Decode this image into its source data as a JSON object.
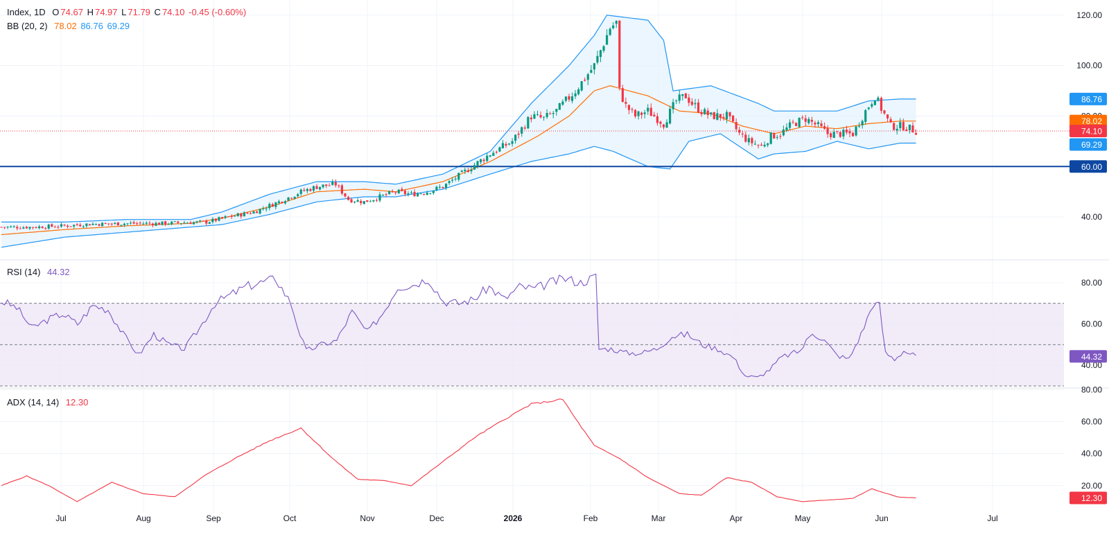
{
  "colors": {
    "up": "#089981",
    "down": "#f23645",
    "bb_basis": "#ff6d00",
    "bb_band": "#2196f3",
    "bb_fill": "#e3f2fd",
    "rsi": "#7e57c2",
    "rsi_fill": "#ede7f6",
    "adx": "#f23645",
    "hline": "#0d47a1",
    "grid": "#f0f3fa"
  },
  "legend": {
    "main_symbol": "Index, 1D",
    "O_label": "O",
    "O": "74.67",
    "H_label": "H",
    "H": "74.97",
    "L_label": "L",
    "L": "71.79",
    "C_label": "C",
    "C": "74.10",
    "change": "-0.45 (-0.60%)",
    "bb_name": "BB (20, 2)",
    "bb_basis": "78.02",
    "bb_upper": "86.76",
    "bb_lower": "69.29",
    "rsi_name": "RSI (14)",
    "rsi_value": "44.32",
    "adx_name": "ADX (14, 14)",
    "adx_value": "12.30"
  },
  "price_labels": {
    "upper": "86.76",
    "basis": "78.02",
    "close": "74.10",
    "lower": "69.29",
    "hline": "60.00"
  },
  "chart_data": [
    {
      "type": "candlestick",
      "title": "Index, 1D",
      "x_ticks": [
        "Jul",
        "Aug",
        "Sep",
        "Oct",
        "Nov",
        "Dec",
        "2026",
        "Feb",
        "Mar",
        "Apr",
        "May",
        "Jun",
        "Jul"
      ],
      "y_ticks": [
        "40.00",
        "60.00",
        "80.00",
        "100.00",
        "120.00"
      ],
      "ylim": [
        23,
        126
      ],
      "horizontal_line": 60,
      "close_line": 74.1,
      "x_index_range": [
        0,
        336
      ],
      "close_waypoints": [
        [
          0,
          36
        ],
        [
          10,
          36
        ],
        [
          20,
          36.5
        ],
        [
          28,
          37.2
        ],
        [
          35,
          37.3
        ],
        [
          43,
          37.5
        ],
        [
          50,
          37.4
        ],
        [
          58,
          37.8
        ],
        [
          65,
          38
        ],
        [
          72,
          40
        ],
        [
          80,
          42
        ],
        [
          88,
          46
        ],
        [
          95,
          50
        ],
        [
          100,
          52
        ],
        [
          106,
          53
        ],
        [
          110,
          47
        ],
        [
          115,
          46
        ],
        [
          120,
          48
        ],
        [
          125,
          50
        ],
        [
          130,
          49
        ],
        [
          135,
          50
        ],
        [
          140,
          52
        ],
        [
          147,
          58
        ],
        [
          155,
          65
        ],
        [
          162,
          70
        ],
        [
          168,
          80
        ],
        [
          172,
          79
        ],
        [
          176,
          82
        ],
        [
          182,
          90
        ],
        [
          188,
          100
        ],
        [
          193,
          115
        ],
        [
          195,
          117
        ],
        [
          196,
          90
        ],
        [
          198,
          84
        ],
        [
          201,
          80
        ],
        [
          205,
          82
        ],
        [
          210,
          77
        ],
        [
          214,
          86
        ],
        [
          217,
          88
        ],
        [
          219,
          85
        ],
        [
          222,
          82
        ],
        [
          225,
          80
        ],
        [
          230,
          80
        ],
        [
          234,
          73
        ],
        [
          237,
          70
        ],
        [
          241,
          68
        ],
        [
          244,
          72
        ],
        [
          247,
          73
        ],
        [
          251,
          77
        ],
        [
          255,
          79
        ],
        [
          259,
          76
        ],
        [
          262,
          73
        ],
        [
          266,
          73
        ],
        [
          270,
          73
        ],
        [
          274,
          82
        ],
        [
          277,
          88
        ],
        [
          279,
          83
        ],
        [
          282,
          76
        ],
        [
          286,
          76
        ],
        [
          290,
          74.1
        ]
      ],
      "candle_range": [
        0,
        290
      ],
      "bb": {
        "basis_waypoints": [
          [
            0,
            33
          ],
          [
            20,
            35
          ],
          [
            40,
            36.5
          ],
          [
            60,
            37.5
          ],
          [
            70,
            39.5
          ],
          [
            85,
            44
          ],
          [
            100,
            50
          ],
          [
            115,
            51
          ],
          [
            125,
            50
          ],
          [
            140,
            54
          ],
          [
            155,
            62
          ],
          [
            170,
            72
          ],
          [
            180,
            80
          ],
          [
            188,
            90
          ],
          [
            193,
            92
          ],
          [
            205,
            88
          ],
          [
            215,
            82
          ],
          [
            225,
            81
          ],
          [
            235,
            76
          ],
          [
            245,
            73
          ],
          [
            255,
            76
          ],
          [
            265,
            75
          ],
          [
            275,
            77
          ],
          [
            285,
            78.02
          ],
          [
            290,
            78.02
          ]
        ],
        "upper_waypoints": [
          [
            0,
            38
          ],
          [
            20,
            38
          ],
          [
            40,
            39
          ],
          [
            60,
            39
          ],
          [
            70,
            42
          ],
          [
            85,
            49
          ],
          [
            100,
            54
          ],
          [
            115,
            54
          ],
          [
            125,
            53
          ],
          [
            140,
            57
          ],
          [
            155,
            66
          ],
          [
            168,
            85
          ],
          [
            180,
            100
          ],
          [
            188,
            112
          ],
          [
            192,
            120
          ],
          [
            205,
            118
          ],
          [
            210,
            110
          ],
          [
            213,
            90
          ],
          [
            225,
            92
          ],
          [
            240,
            85
          ],
          [
            245,
            82
          ],
          [
            255,
            82
          ],
          [
            265,
            82
          ],
          [
            275,
            86
          ],
          [
            285,
            86.76
          ],
          [
            290,
            86.76
          ]
        ],
        "lower_waypoints": [
          [
            0,
            28
          ],
          [
            20,
            32
          ],
          [
            40,
            34
          ],
          [
            60,
            36
          ],
          [
            70,
            37
          ],
          [
            85,
            41
          ],
          [
            100,
            46
          ],
          [
            115,
            48
          ],
          [
            125,
            48
          ],
          [
            140,
            51
          ],
          [
            155,
            57
          ],
          [
            168,
            62
          ],
          [
            180,
            65
          ],
          [
            188,
            68
          ],
          [
            194,
            66
          ],
          [
            205,
            60
          ],
          [
            212,
            59
          ],
          [
            218,
            70
          ],
          [
            228,
            73
          ],
          [
            240,
            63
          ],
          [
            245,
            65
          ],
          [
            255,
            66
          ],
          [
            265,
            70
          ],
          [
            275,
            67
          ],
          [
            285,
            69.29
          ],
          [
            290,
            69.29
          ]
        ]
      }
    },
    {
      "type": "line",
      "title": "RSI (14)",
      "y_ticks": [
        "40.00",
        "60.00",
        "80.00"
      ],
      "ylim": [
        29,
        91
      ],
      "levels": [
        70,
        50,
        30
      ],
      "waypoints": [
        [
          0,
          71
        ],
        [
          5,
          68
        ],
        [
          10,
          58
        ],
        [
          15,
          62
        ],
        [
          20,
          65
        ],
        [
          25,
          60
        ],
        [
          30,
          69
        ],
        [
          35,
          67
        ],
        [
          40,
          55
        ],
        [
          45,
          45
        ],
        [
          50,
          55
        ],
        [
          55,
          50
        ],
        [
          60,
          48
        ],
        [
          65,
          58
        ],
        [
          70,
          70
        ],
        [
          75,
          74
        ],
        [
          80,
          78
        ],
        [
          85,
          80
        ],
        [
          90,
          82
        ],
        [
          95,
          70
        ],
        [
          98,
          55
        ],
        [
          100,
          47
        ],
        [
          105,
          50
        ],
        [
          110,
          52
        ],
        [
          115,
          66
        ],
        [
          120,
          56
        ],
        [
          125,
          65
        ],
        [
          130,
          78
        ],
        [
          135,
          79
        ],
        [
          140,
          82
        ],
        [
          145,
          71
        ],
        [
          150,
          70
        ],
        [
          155,
          72
        ],
        [
          160,
          78
        ],
        [
          165,
          72
        ],
        [
          170,
          78
        ],
        [
          175,
          77
        ],
        [
          180,
          80
        ],
        [
          185,
          82
        ],
        [
          190,
          80
        ],
        [
          195,
          83
        ],
        [
          196,
          48
        ],
        [
          200,
          48
        ],
        [
          205,
          46
        ],
        [
          210,
          46
        ],
        [
          215,
          48
        ],
        [
          220,
          54
        ],
        [
          225,
          55
        ],
        [
          230,
          50
        ],
        [
          235,
          48
        ],
        [
          240,
          44
        ],
        [
          244,
          35
        ],
        [
          248,
          34
        ],
        [
          252,
          38
        ],
        [
          256,
          44
        ],
        [
          262,
          47
        ],
        [
          266,
          56
        ],
        [
          270,
          52
        ],
        [
          274,
          45
        ],
        [
          278,
          43
        ],
        [
          282,
          55
        ],
        [
          286,
          70
        ],
        [
          288,
          69
        ],
        [
          290,
          46
        ],
        [
          293,
          43
        ],
        [
          296,
          47
        ],
        [
          300,
          44.32
        ]
      ]
    },
    {
      "type": "line",
      "title": "ADX (14, 14)",
      "y_ticks": [
        "20.00",
        "40.00",
        "60.00",
        "80.00"
      ],
      "ylim": [
        3,
        81
      ],
      "waypoints": [
        [
          0,
          20
        ],
        [
          8,
          26
        ],
        [
          15,
          20
        ],
        [
          24,
          10
        ],
        [
          35,
          22
        ],
        [
          45,
          15
        ],
        [
          55,
          13
        ],
        [
          65,
          27
        ],
        [
          75,
          38
        ],
        [
          85,
          48
        ],
        [
          95,
          56
        ],
        [
          105,
          37
        ],
        [
          113,
          24
        ],
        [
          122,
          23
        ],
        [
          130,
          20
        ],
        [
          140,
          35
        ],
        [
          150,
          50
        ],
        [
          160,
          62
        ],
        [
          168,
          71
        ],
        [
          175,
          73
        ],
        [
          178,
          74
        ],
        [
          182,
          62
        ],
        [
          188,
          45
        ],
        [
          196,
          37
        ],
        [
          205,
          25
        ],
        [
          215,
          15
        ],
        [
          222,
          14
        ],
        [
          230,
          25
        ],
        [
          238,
          22
        ],
        [
          246,
          13
        ],
        [
          254,
          10
        ],
        [
          262,
          11
        ],
        [
          270,
          12
        ],
        [
          276,
          18
        ],
        [
          284,
          13
        ],
        [
          290,
          12.3
        ]
      ]
    }
  ]
}
